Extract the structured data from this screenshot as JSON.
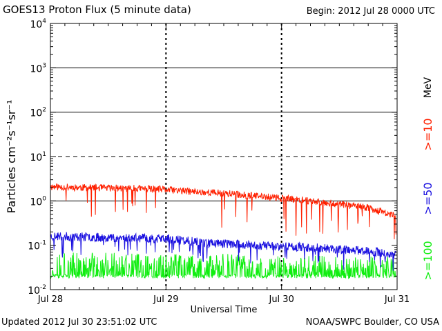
{
  "header": {
    "title": "GOES13 Proton Flux (5 minute data)",
    "begin": "Begin: 2012 Jul 28 0000 UTC"
  },
  "footer": {
    "updated": "Updated 2012 Jul 30 23:51:02 UTC",
    "credit": "NOAA/SWPC Boulder, CO USA"
  },
  "chart_data": {
    "type": "line",
    "title": "GOES13 Proton Flux (5 minute data)",
    "xlabel": "Universal Time",
    "ylabel": "Particles cm⁻²s⁻¹sr⁻¹",
    "yscale": "log",
    "ylim": [
      0.01,
      10000
    ],
    "xlim_days": [
      0,
      3
    ],
    "x_ticks": [
      {
        "day": 0,
        "label": "Jul 28"
      },
      {
        "day": 1,
        "label": "Jul 29"
      },
      {
        "day": 2,
        "label": "Jul 30"
      },
      {
        "day": 3,
        "label": "Jul 31"
      }
    ],
    "y_ticks": [
      {
        "value": 0.01,
        "base": "10",
        "exp": "-2"
      },
      {
        "value": 0.1,
        "base": "10",
        "exp": "-1"
      },
      {
        "value": 1,
        "base": "10",
        "exp": "0"
      },
      {
        "value": 10,
        "base": "10",
        "exp": "1"
      },
      {
        "value": 100,
        "base": "10",
        "exp": "2"
      },
      {
        "value": 1000,
        "base": "10",
        "exp": "3"
      },
      {
        "value": 10000,
        "base": "10",
        "exp": "4"
      }
    ],
    "gridlines": [
      {
        "value": 1,
        "style": "solid"
      },
      {
        "value": 10,
        "style": "dashed"
      },
      {
        "value": 100,
        "style": "solid"
      },
      {
        "value": 1000,
        "style": "solid"
      }
    ],
    "unit_label": "MeV",
    "series": [
      {
        "name": ">=10",
        "color": "#ff2000",
        "data_end_day": 2.99,
        "values": [
          [
            0,
            2.1
          ],
          [
            0.25,
            2.0
          ],
          [
            0.5,
            1.95
          ],
          [
            0.75,
            1.9
          ],
          [
            1.0,
            1.8
          ],
          [
            1.25,
            1.6
          ],
          [
            1.5,
            1.5
          ],
          [
            1.75,
            1.3
          ],
          [
            2.0,
            1.15
          ],
          [
            2.25,
            1.0
          ],
          [
            2.5,
            0.85
          ],
          [
            2.75,
            0.7
          ],
          [
            2.99,
            0.45
          ]
        ]
      },
      {
        "name": ">=50",
        "color": "#1a10e0",
        "data_end_day": 2.99,
        "values": [
          [
            0,
            0.16
          ],
          [
            0.25,
            0.155
          ],
          [
            0.5,
            0.15
          ],
          [
            0.75,
            0.145
          ],
          [
            1.0,
            0.14
          ],
          [
            1.25,
            0.12
          ],
          [
            1.5,
            0.11
          ],
          [
            1.75,
            0.1
          ],
          [
            2.0,
            0.095
          ],
          [
            2.25,
            0.09
          ],
          [
            2.5,
            0.08
          ],
          [
            2.75,
            0.075
          ],
          [
            2.99,
            0.06
          ]
        ]
      },
      {
        "name": ">=100",
        "color": "#10ee10",
        "data_end_day": 2.99,
        "values": [
          [
            0,
            0.035
          ],
          [
            0.25,
            0.035
          ],
          [
            0.5,
            0.035
          ],
          [
            0.75,
            0.034
          ],
          [
            1.0,
            0.034
          ],
          [
            1.25,
            0.033
          ],
          [
            1.5,
            0.033
          ],
          [
            1.75,
            0.032
          ],
          [
            2.0,
            0.031
          ],
          [
            2.25,
            0.031
          ],
          [
            2.5,
            0.03
          ],
          [
            2.75,
            0.029
          ],
          [
            2.99,
            0.028
          ]
        ]
      }
    ]
  }
}
